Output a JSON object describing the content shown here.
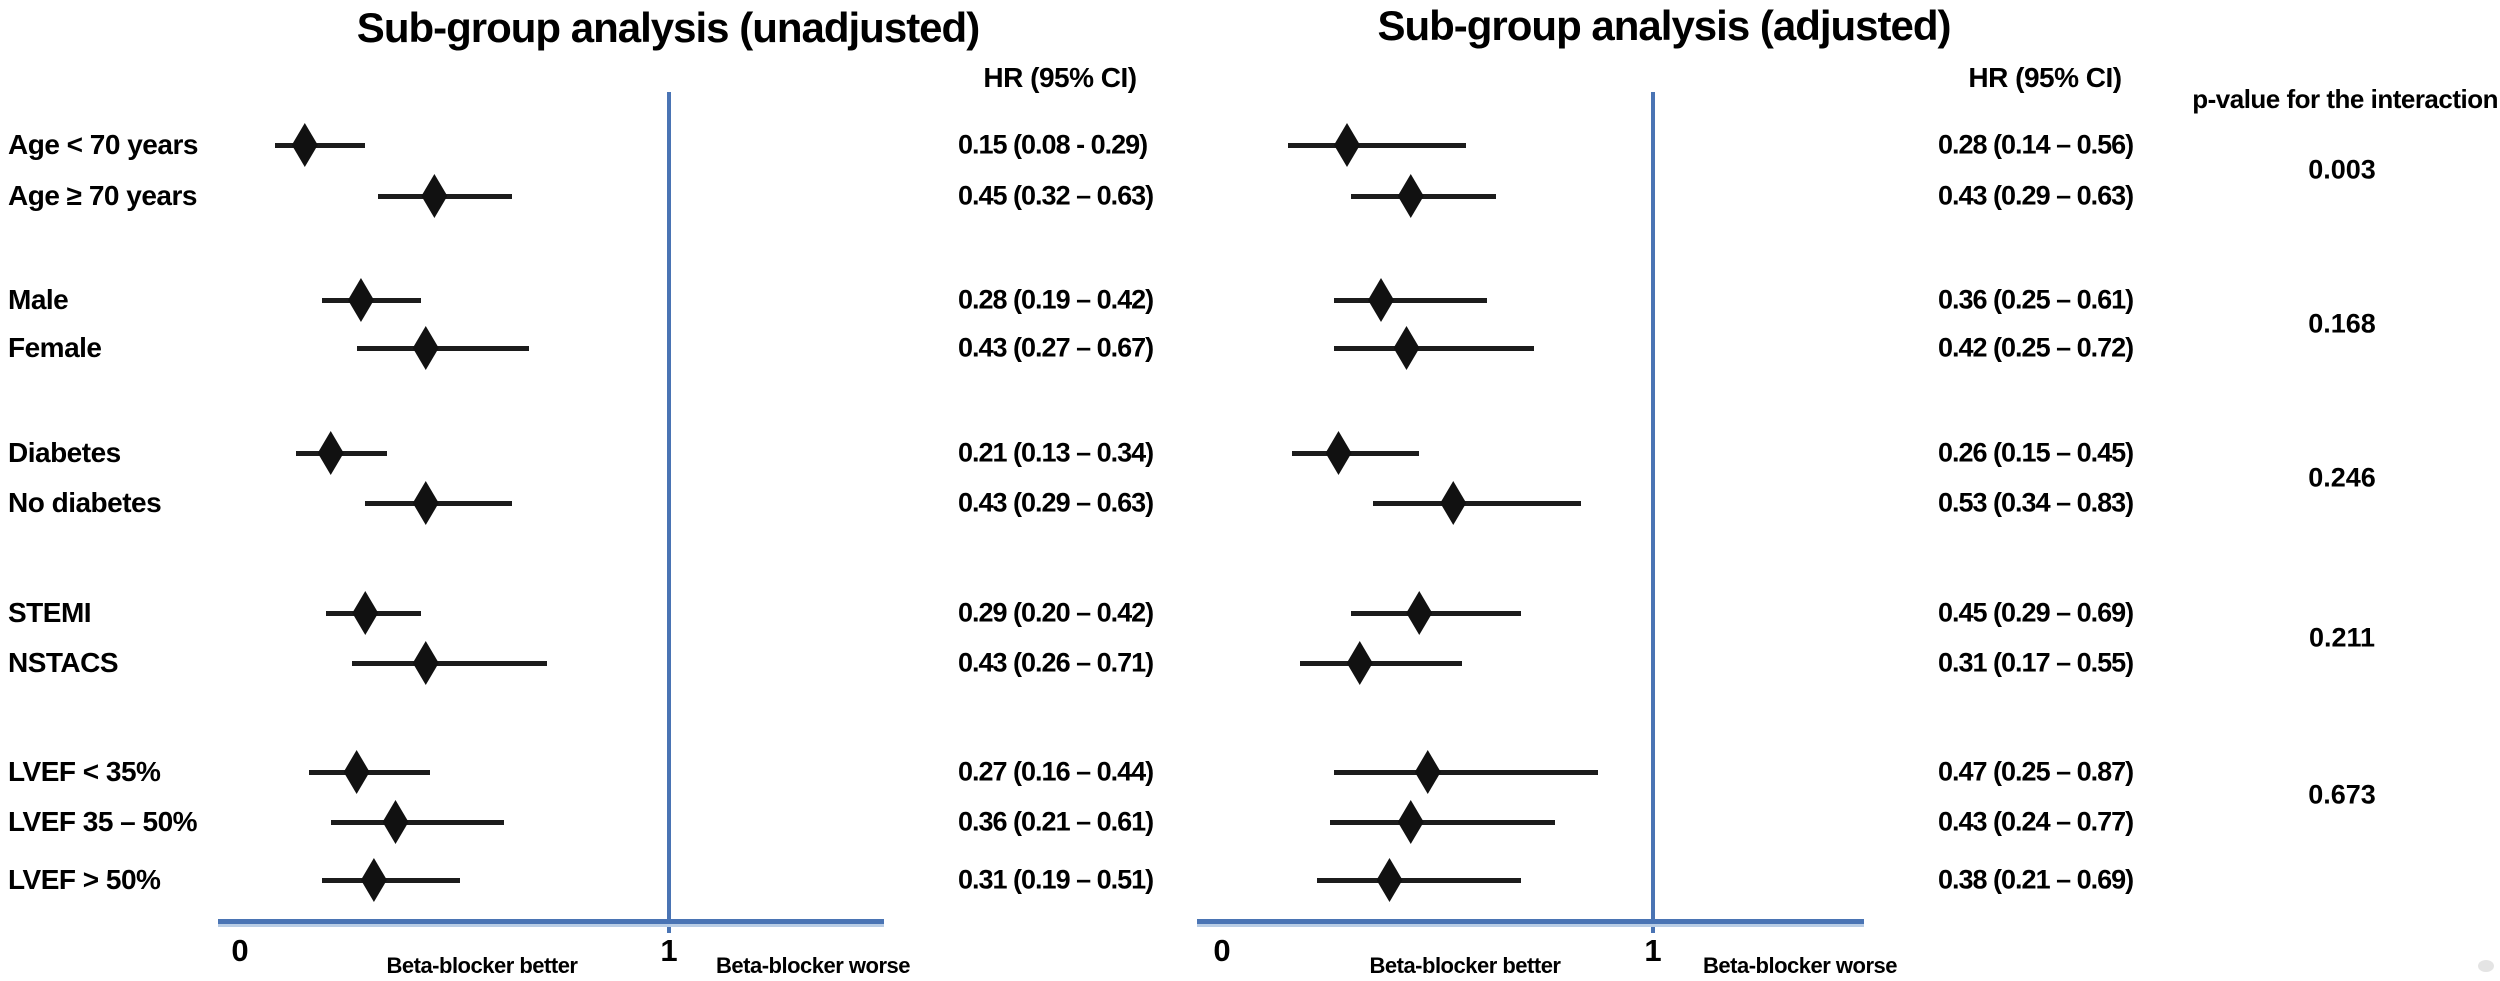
{
  "figure": {
    "hr_header": "HR (95% CI)",
    "interaction_header": "p-value for the interaction",
    "axis": {
      "tick_zero": "0",
      "tick_one": "1",
      "better_label": "Beta-blocker better",
      "worse_label": "Beta-blocker worse"
    }
  },
  "chart_data": {
    "type": "forest",
    "categories": [
      "Age < 70 years",
      "Age ≥ 70 years",
      "Male",
      "Female",
      "Diabetes",
      "No diabetes",
      "STEMI",
      "NSTACS",
      "LVEF < 35%",
      "LVEF 35 – 50%",
      "LVEF > 50%"
    ],
    "series": [
      {
        "name": "Sub-group analysis (unadjusted)",
        "hr": [
          0.15,
          0.45,
          0.28,
          0.43,
          0.21,
          0.43,
          0.29,
          0.43,
          0.27,
          0.36,
          0.31
        ],
        "lo": [
          0.08,
          0.32,
          0.19,
          0.27,
          0.13,
          0.29,
          0.2,
          0.26,
          0.16,
          0.21,
          0.19
        ],
        "hi": [
          0.29,
          0.63,
          0.42,
          0.67,
          0.34,
          0.63,
          0.42,
          0.71,
          0.44,
          0.61,
          0.51
        ],
        "ci_text": [
          "0.15 (0.08 - 0.29)",
          "0.45 (0.32 – 0.63)",
          "0.28 (0.19 – 0.42)",
          "0.43 (0.27 – 0.67)",
          "0.21 (0.13 – 0.34)",
          "0.43 (0.29 – 0.63)",
          "0.29 (0.20 – 0.42)",
          "0.43 (0.26 – 0.71)",
          "0.27 (0.16 – 0.44)",
          "0.36 (0.21 – 0.61)",
          "0.31 (0.19 – 0.51)"
        ]
      },
      {
        "name": "Sub-group analysis (adjusted)",
        "hr": [
          0.28,
          0.43,
          0.36,
          0.42,
          0.26,
          0.53,
          0.45,
          0.31,
          0.47,
          0.43,
          0.38
        ],
        "lo": [
          0.14,
          0.29,
          0.25,
          0.25,
          0.15,
          0.34,
          0.29,
          0.17,
          0.25,
          0.24,
          0.21
        ],
        "hi": [
          0.56,
          0.63,
          0.61,
          0.72,
          0.45,
          0.83,
          0.69,
          0.55,
          0.87,
          0.77,
          0.69
        ],
        "ci_text": [
          "0.28 (0.14 – 0.56)",
          "0.43 (0.29 – 0.63)",
          "0.36 (0.25 – 0.61)",
          "0.42 (0.25 – 0.72)",
          "0.26 (0.15 – 0.45)",
          "0.53 (0.34 – 0.83)",
          "0.45 (0.29 – 0.69)",
          "0.31 (0.17 – 0.55)",
          "0.47 (0.25 – 0.87)",
          "0.43 (0.24 – 0.77)",
          "0.38 (0.21 – 0.69)"
        ]
      }
    ],
    "p_values": [
      "0.003",
      "0.168",
      "0.246",
      "0.211",
      "0.673"
    ],
    "p_value_groups": [
      [
        "Age < 70 years",
        "Age ≥ 70 years"
      ],
      [
        "Male",
        "Female"
      ],
      [
        "Diabetes",
        "No diabetes"
      ],
      [
        "STEMI",
        "NSTACS"
      ],
      [
        "LVEF < 35%",
        "LVEF 35 – 50%",
        "LVEF > 50%"
      ]
    ],
    "xlim": [
      0,
      1.5
    ],
    "reference_line": 1,
    "legend_position": "none",
    "grid": false,
    "colors": {
      "axis": "#4a74b4",
      "axis_light": "#b9cde5",
      "marker": "#111111",
      "text": "#000000"
    }
  }
}
